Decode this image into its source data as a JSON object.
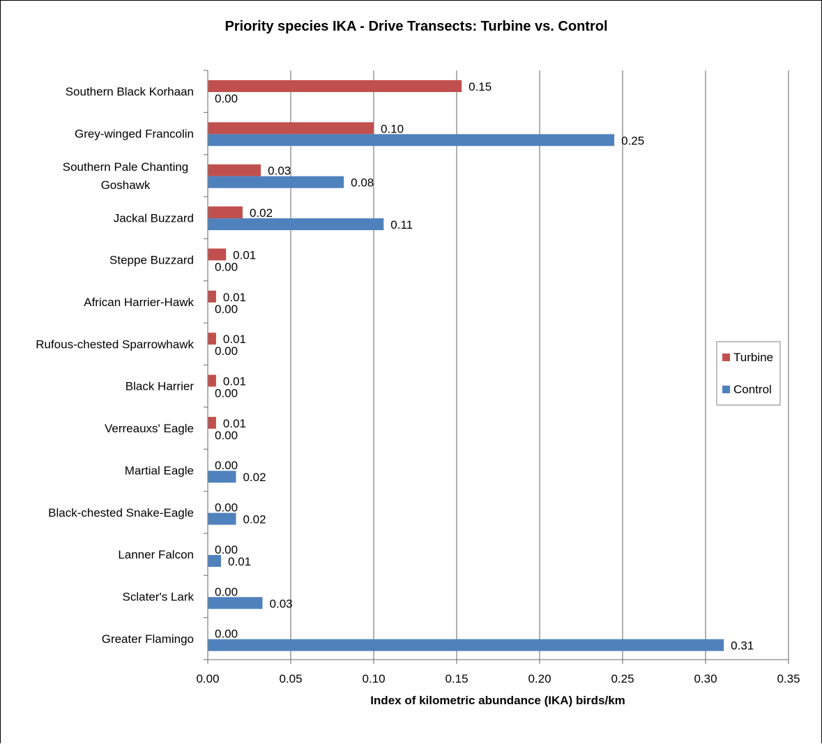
{
  "chart_data": {
    "type": "bar",
    "orientation": "horizontal",
    "title": "Priority species IKA - Drive Transects: Turbine vs. Control",
    "xlabel": "Index of kilometric abundance  (IKA) birds/km",
    "ylabel": "",
    "xlim": [
      0,
      0.35
    ],
    "xticks": [
      0,
      0.05,
      0.1,
      0.15,
      0.2,
      0.25,
      0.3,
      0.35
    ],
    "xtick_labels": [
      "0.00",
      "0.05",
      "0.10",
      "0.15",
      "0.20",
      "0.25",
      "0.30",
      "0.35"
    ],
    "grid": "vertical",
    "legend_position": "right",
    "categories": [
      "Southern Black Korhaan",
      "Grey-winged Francolin",
      "Southern Pale Chanting Goshawk",
      "Jackal Buzzard",
      "Steppe Buzzard",
      "African Harrier-Hawk",
      "Rufous-chested Sparrowhawk",
      "Black Harrier",
      "Verreauxs' Eagle",
      "Martial Eagle",
      "Black-chested Snake-Eagle",
      "Lanner Falcon",
      "Sclater's Lark",
      "Greater Flamingo"
    ],
    "category_lines": [
      [
        "Southern Black Korhaan"
      ],
      [
        "Grey-winged Francolin"
      ],
      [
        "Southern Pale Chanting",
        "Goshawk"
      ],
      [
        "Jackal Buzzard"
      ],
      [
        "Steppe Buzzard"
      ],
      [
        "African Harrier-Hawk"
      ],
      [
        "Rufous-chested Sparrowhawk"
      ],
      [
        "Black Harrier"
      ],
      [
        "Verreauxs' Eagle"
      ],
      [
        "Martial Eagle"
      ],
      [
        "Black-chested Snake-Eagle"
      ],
      [
        "Lanner Falcon"
      ],
      [
        "Sclater's Lark"
      ],
      [
        "Greater Flamingo"
      ]
    ],
    "series": [
      {
        "name": "Turbine",
        "color": "#c0504d",
        "values": [
          0.153,
          0.1,
          0.032,
          0.021,
          0.011,
          0.005,
          0.005,
          0.005,
          0.005,
          0,
          0,
          0,
          0,
          0
        ],
        "labels": [
          "0.15",
          "0.10",
          "0.03",
          "0.02",
          "0.01",
          "0.01",
          "0.01",
          "0.01",
          "0.01",
          "0.00",
          "0.00",
          "0.00",
          "0.00",
          "0.00"
        ]
      },
      {
        "name": "Control",
        "color": "#4f81bd",
        "values": [
          0,
          0.245,
          0.082,
          0.106,
          0,
          0,
          0,
          0,
          0,
          0.017,
          0.017,
          0.008,
          0.033,
          0.311
        ],
        "labels": [
          "0.00",
          "0.25",
          "0.08",
          "0.11",
          "0.00",
          "0.00",
          "0.00",
          "0.00",
          "0.00",
          "0.02",
          "0.02",
          "0.01",
          "0.03",
          "0.31"
        ]
      }
    ]
  }
}
